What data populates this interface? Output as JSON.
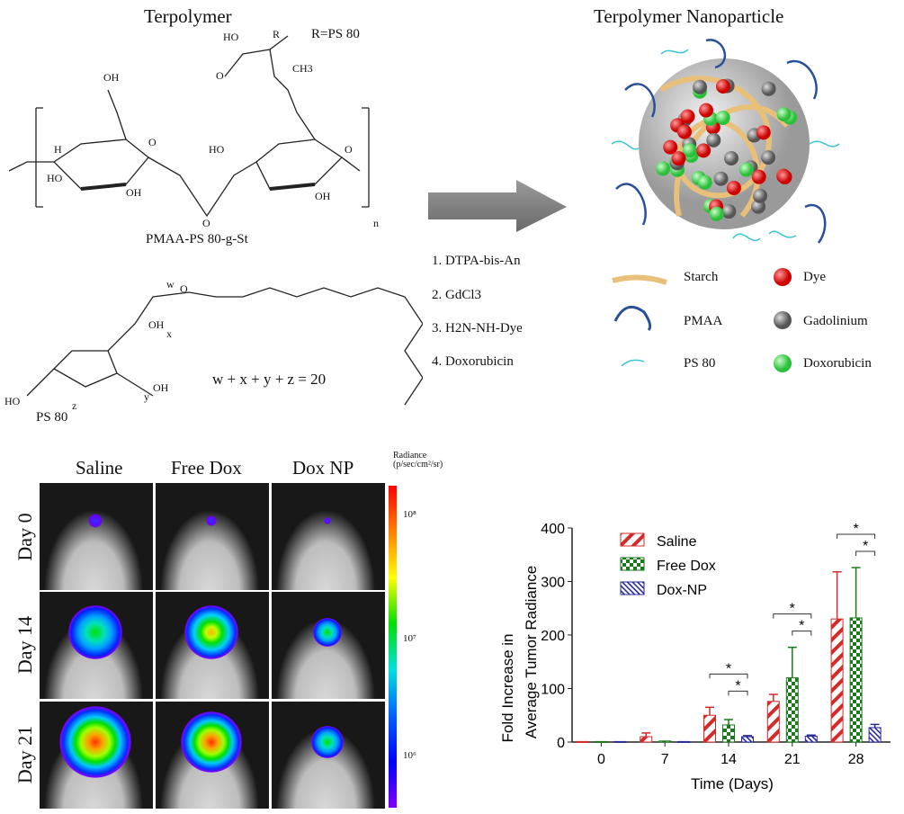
{
  "top": {
    "left_title": "Terpolymer",
    "right_title": "Terpolymer Nanoparticle",
    "r_label": "R=PS 80",
    "polymer_name": "PMAA-PS 80-g-St",
    "ps80_name": "PS 80",
    "ps80_equation": "w + x + y + z = 20",
    "atoms": {
      "oh": "OH",
      "ho": "HO",
      "h": "H",
      "o": "O",
      "n": "n",
      "r": "R",
      "ch3": "CH3",
      "w": "w",
      "x": "x",
      "y": "y",
      "z": "z"
    },
    "steps": [
      "1. DTPA-bis-An",
      "2. GdCl3",
      "3. H2N-NH-Dye",
      "4. Doxorubicin"
    ],
    "legend": [
      {
        "label": "Starch",
        "icon": "starch-strand",
        "color": "#e8c07a"
      },
      {
        "label": "PMAA",
        "icon": "pmaa-strand",
        "color": "#2a4f9a"
      },
      {
        "label": "PS 80",
        "icon": "ps80-strand",
        "color": "#39c6d0"
      },
      {
        "label": "Dye",
        "icon": "red-sphere",
        "color": "#e02020"
      },
      {
        "label": "Gadolinium",
        "icon": "grey-sphere",
        "color": "#808080"
      },
      {
        "label": "Doxorubicin",
        "icon": "green-sphere",
        "color": "#3ed64a"
      }
    ]
  },
  "imaging": {
    "columns": [
      "Saline",
      "Free Dox",
      "Dox NP"
    ],
    "rows": [
      "Day 0",
      "Day 14",
      "Day 21"
    ],
    "colorbar_title": "Radiance",
    "colorbar_unit": "(p/sec/cm²/sr)",
    "colorbar_ticks": [
      "10⁸",
      "10⁷",
      "10⁶"
    ]
  },
  "chart_data": {
    "type": "bar",
    "xlabel": "Time (Days)",
    "ylabel_line1": "Fold Increase in",
    "ylabel_line2": "Average Tumor  Radiance",
    "categories": [
      "0",
      "7",
      "14",
      "21",
      "28"
    ],
    "ylim": [
      0,
      400
    ],
    "yticks": [
      "0",
      "100",
      "200",
      "300",
      "400"
    ],
    "grid": false,
    "legend_position": "top-left",
    "series": [
      {
        "name": "Saline",
        "color": "#d42a2a",
        "pattern": "diagonal-stripes",
        "values": [
          1,
          10,
          50,
          76,
          230
        ],
        "errors": [
          0,
          7,
          15,
          13,
          88
        ]
      },
      {
        "name": "Free Dox",
        "color": "#1a7a1a",
        "pattern": "checkerboard",
        "values": [
          1,
          2,
          32,
          120,
          232
        ],
        "errors": [
          0,
          0,
          10,
          57,
          94
        ]
      },
      {
        "name": "Dox-NP",
        "color": "#2a2a9a",
        "pattern": "fine-diagonal",
        "values": [
          1,
          1,
          10,
          11,
          27
        ],
        "errors": [
          0,
          0,
          2,
          2,
          6
        ]
      }
    ],
    "significance_marker": "*",
    "significance": [
      {
        "category": "14",
        "pairs": [
          [
            "Saline",
            "Dox-NP"
          ],
          [
            "Free Dox",
            "Dox-NP"
          ]
        ]
      },
      {
        "category": "21",
        "pairs": [
          [
            "Saline",
            "Dox-NP"
          ],
          [
            "Free Dox",
            "Dox-NP"
          ]
        ]
      },
      {
        "category": "28",
        "pairs": [
          [
            "Saline",
            "Dox-NP"
          ],
          [
            "Free Dox",
            "Dox-NP"
          ]
        ]
      }
    ]
  }
}
